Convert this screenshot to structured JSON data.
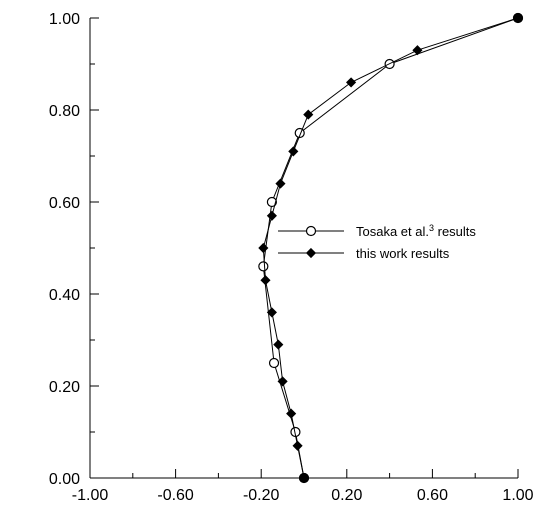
{
  "chart_data": {
    "type": "line",
    "xlim": [
      -1.0,
      1.0
    ],
    "ylim": [
      0.0,
      1.0
    ],
    "x_ticks": [
      -1.0,
      -0.6,
      -0.2,
      0.2,
      0.6,
      1.0
    ],
    "x_tick_labels": [
      "-1.00",
      "-0.60",
      "-0.20",
      "0.20",
      "0.60",
      "1.00"
    ],
    "x_minor_step": 0.2,
    "y_ticks": [
      0.0,
      0.2,
      0.4,
      0.6,
      0.8,
      1.0
    ],
    "y_tick_labels": [
      "0.00",
      "0.20",
      "0.40",
      "0.60",
      "0.80",
      "1.00"
    ],
    "y_minor_step": 0.1,
    "grid": false,
    "legend_position": "right",
    "series": [
      {
        "name": "Tosaka et al.",
        "name_superscript": "3",
        "name_suffix": " results",
        "marker": "open-circle",
        "x": [
          0.0,
          -0.04,
          -0.14,
          -0.19,
          -0.15,
          -0.02,
          0.4,
          1.0
        ],
        "y": [
          0.0,
          0.1,
          0.25,
          0.46,
          0.6,
          0.75,
          0.9,
          1.0
        ]
      },
      {
        "name": "this work results",
        "marker": "filled-diamond",
        "x": [
          0.0,
          -0.03,
          -0.06,
          -0.1,
          -0.12,
          -0.15,
          -0.18,
          -0.19,
          -0.15,
          -0.11,
          -0.05,
          0.02,
          0.22,
          0.53,
          1.0
        ],
        "y": [
          0.0,
          0.07,
          0.14,
          0.21,
          0.29,
          0.36,
          0.43,
          0.5,
          0.57,
          0.64,
          0.71,
          0.79,
          0.86,
          0.93,
          1.0
        ]
      }
    ]
  }
}
